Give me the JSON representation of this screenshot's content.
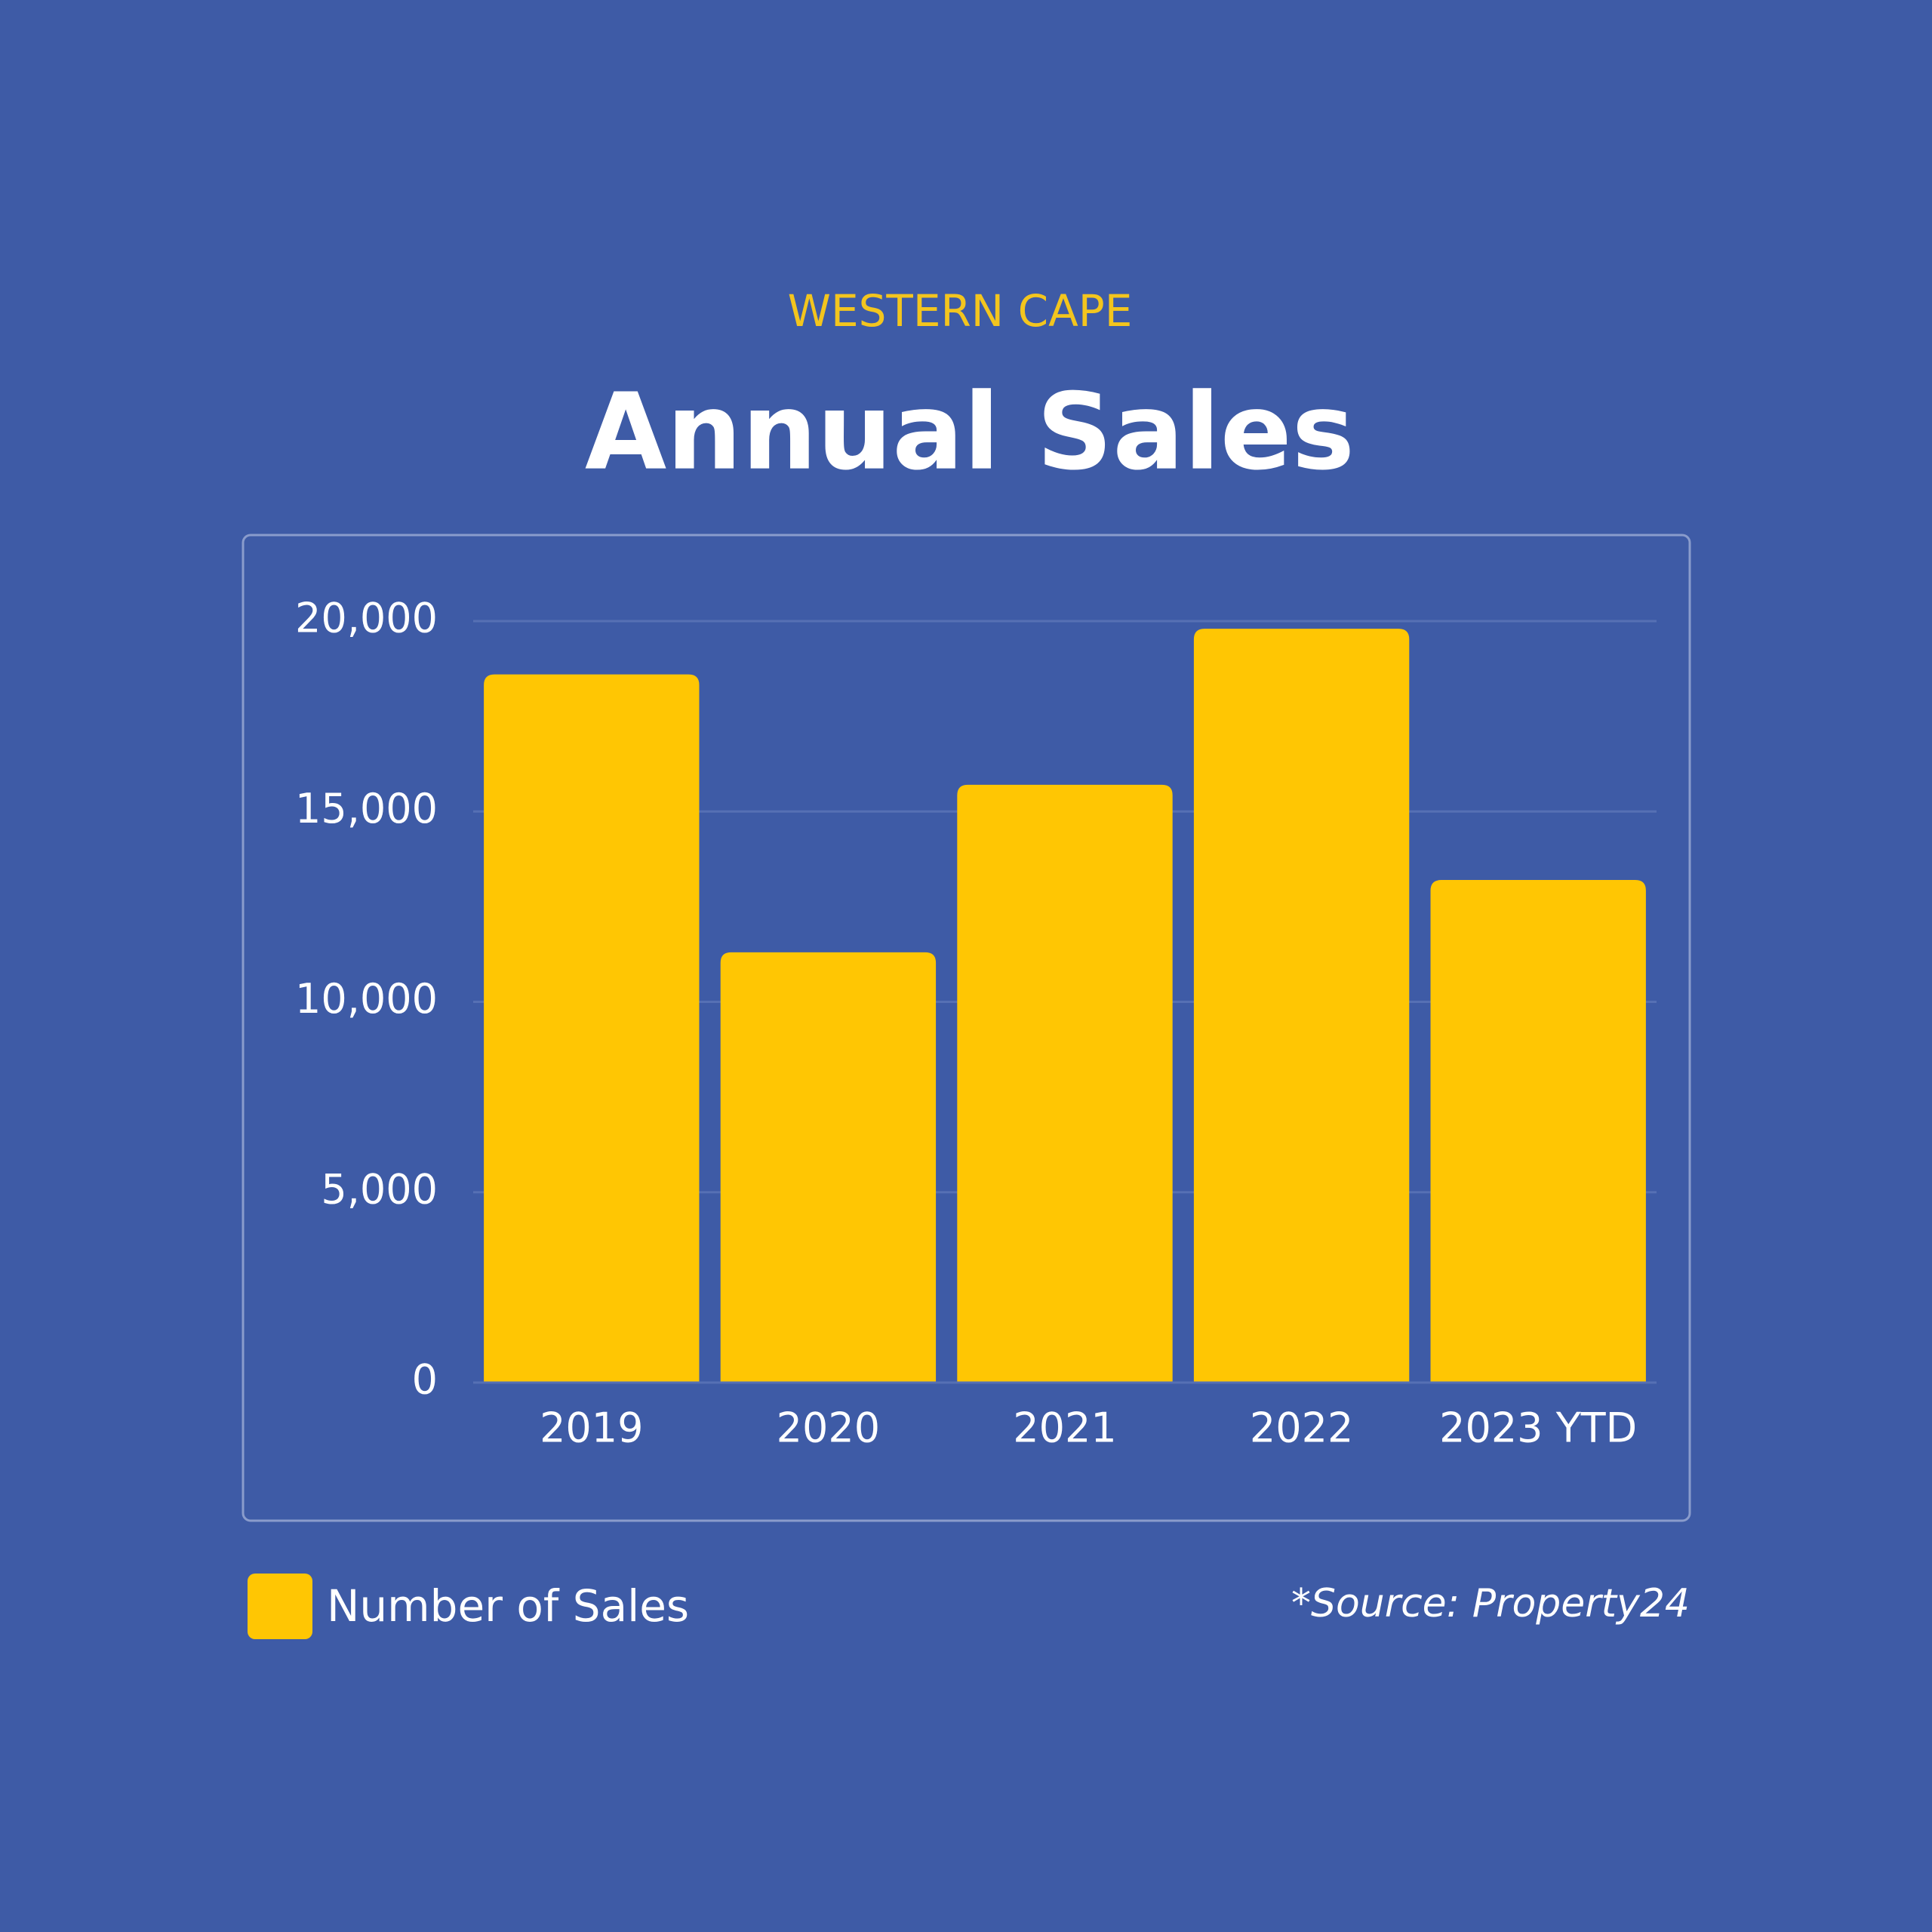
{
  "chart_data": {
    "type": "bar",
    "subtitle": "WESTERN CAPE",
    "title": "Annual Sales",
    "categories": [
      "2019",
      "2020",
      "2021",
      "2022",
      "2023 YTD"
    ],
    "series": [
      {
        "name": "Number of Sales",
        "color": "#ffc603",
        "values": [
          18600,
          11300,
          15700,
          19800,
          13200
        ]
      }
    ],
    "ylim": [
      0,
      20000
    ],
    "yticks": [
      0,
      {
        "value": 5000,
        "label": "5,000"
      },
      {
        "value": 10000,
        "label": "10,000"
      },
      {
        "value": 15000,
        "label": "15,000"
      },
      {
        "value": 20000,
        "label": "20,000"
      }
    ],
    "grid": true,
    "legend": "bottom-left",
    "source": "*Source: Property24"
  }
}
